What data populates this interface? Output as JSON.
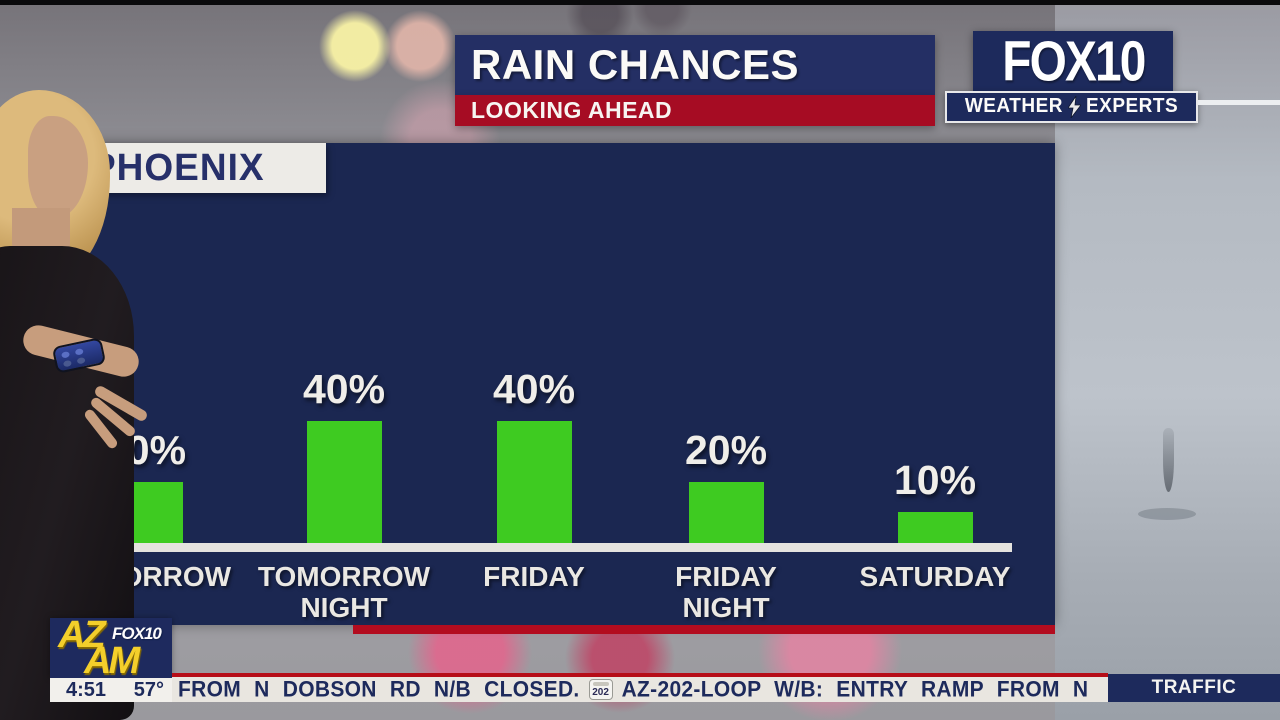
{
  "header": {
    "title": "RAIN CHANCES",
    "subtitle": "LOOKING AHEAD"
  },
  "branding": {
    "station": "FOX10",
    "weather_experts": {
      "left": "WEATHER",
      "right": "EXPERTS"
    },
    "az_am": {
      "az": "AZ",
      "am": "AM",
      "fox": "FOX10"
    }
  },
  "chart_data": {
    "type": "bar",
    "title": "PHOENIX",
    "categories": [
      "TOMORROW",
      "TOMORROW NIGHT",
      "FRIDAY",
      "FRIDAY NIGHT",
      "SATURDAY"
    ],
    "values": [
      20,
      40,
      40,
      20,
      10
    ],
    "value_labels": [
      "20%",
      "40%",
      "40%",
      "20%",
      "10%"
    ],
    "unit": "percent chance of rain",
    "ylim": [
      0,
      100
    ],
    "grid": false,
    "legend": false,
    "bar_color": "#3ecb21",
    "panel_color": "#1b2751"
  },
  "ticker": {
    "time": "4:51",
    "temp": "57°",
    "segment1": "FROM N DOBSON RD N/B CLOSED.",
    "shield": "202",
    "segment2": "AZ-202-LOOP W/B:  ENTRY RAMP FROM N",
    "tag": "TRAFFIC"
  },
  "colors": {
    "accent_red": "#a60c23",
    "panel_navy": "#1b2751",
    "header_navy": "#242f64",
    "bar_green": "#3ecb21",
    "ticker_navy": "#1d2a5c",
    "logo_yellow": "#f3cf2b"
  }
}
